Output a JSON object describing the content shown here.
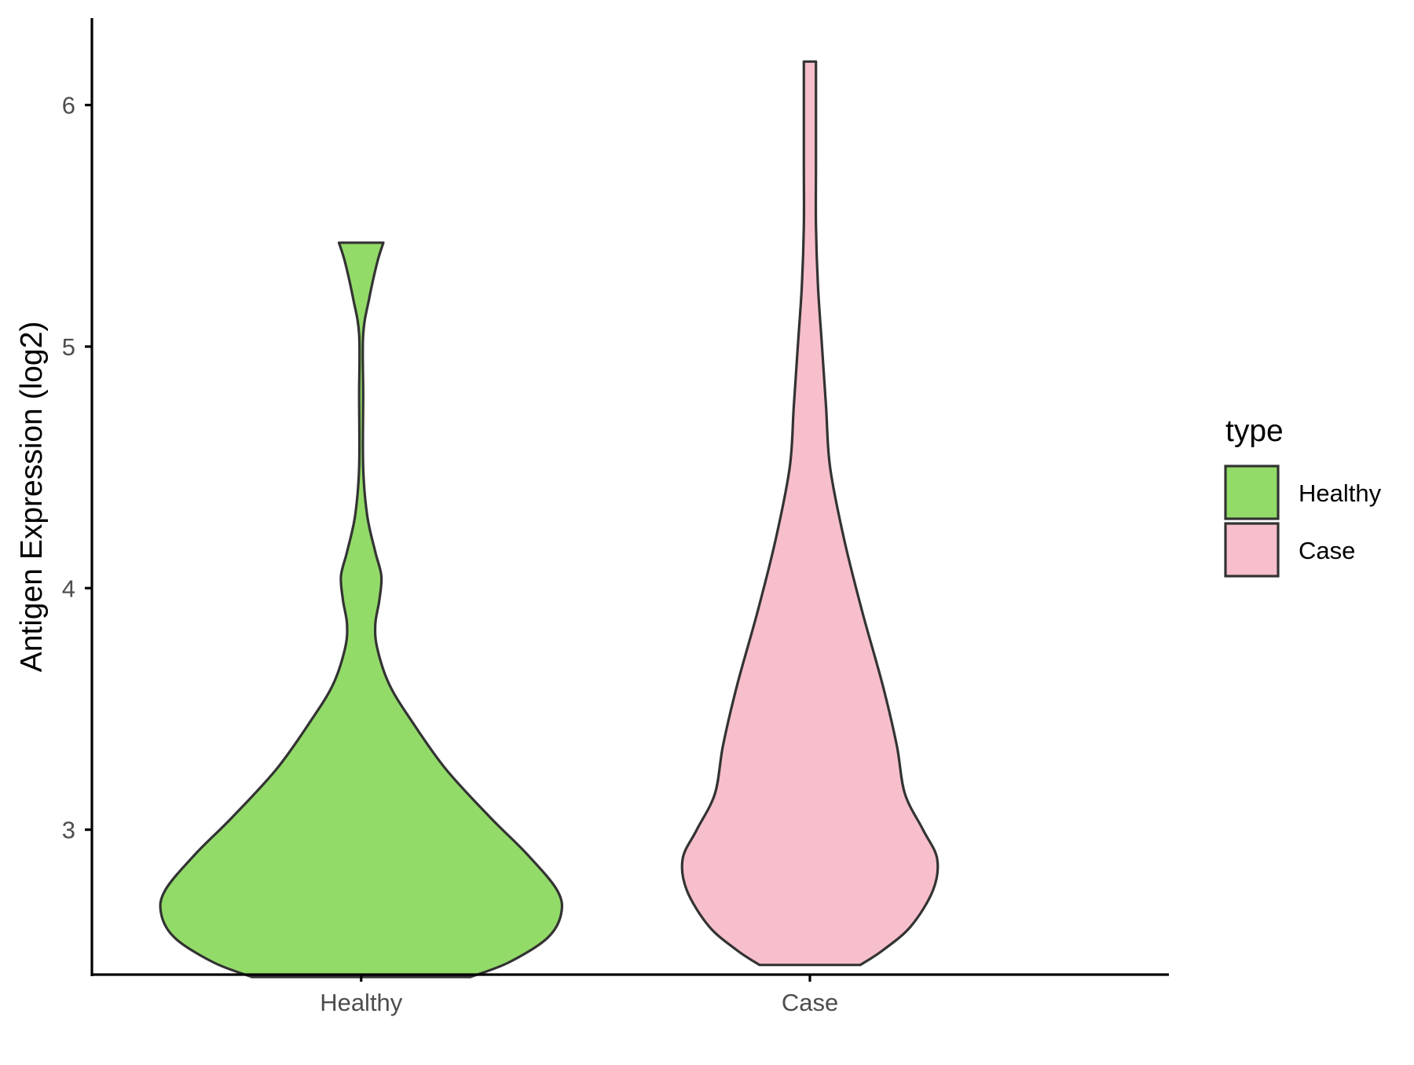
{
  "chart_data": {
    "type": "violin",
    "xlabel": "",
    "ylabel": "Antigen Expression (log2)",
    "ylim": [
      2.4,
      6.36
    ],
    "yticks": [
      3,
      4,
      5,
      6
    ],
    "categories": [
      "Healthy",
      "Case"
    ],
    "legend": {
      "title": "type",
      "placement": "right",
      "entries": [
        {
          "label": "Healthy",
          "color": "#93db69"
        },
        {
          "label": "Case",
          "color": "#f7bfcb"
        }
      ]
    },
    "series": [
      {
        "category": "Healthy",
        "color": "#93db69",
        "min": 2.39,
        "max": 5.43,
        "density_profile": [
          [
            2.39,
            0.54
          ],
          [
            2.45,
            0.73
          ],
          [
            2.55,
            0.92
          ],
          [
            2.65,
            0.99
          ],
          [
            2.75,
            0.97
          ],
          [
            2.9,
            0.82
          ],
          [
            3.05,
            0.64
          ],
          [
            3.25,
            0.42
          ],
          [
            3.45,
            0.25
          ],
          [
            3.6,
            0.14
          ],
          [
            3.75,
            0.08
          ],
          [
            3.85,
            0.07
          ],
          [
            3.95,
            0.09
          ],
          [
            4.05,
            0.1
          ],
          [
            4.15,
            0.07
          ],
          [
            4.3,
            0.03
          ],
          [
            4.5,
            0.01
          ],
          [
            4.8,
            0.01
          ],
          [
            5.05,
            0.01
          ],
          [
            5.2,
            0.04
          ],
          [
            5.35,
            0.08
          ],
          [
            5.43,
            0.11
          ]
        ]
      },
      {
        "category": "Case",
        "color": "#f7bfcb",
        "min": 2.44,
        "max": 6.18,
        "density_profile": [
          [
            2.44,
            0.25
          ],
          [
            2.5,
            0.36
          ],
          [
            2.6,
            0.5
          ],
          [
            2.75,
            0.61
          ],
          [
            2.88,
            0.63
          ],
          [
            3.0,
            0.56
          ],
          [
            3.15,
            0.47
          ],
          [
            3.35,
            0.43
          ],
          [
            3.6,
            0.36
          ],
          [
            3.9,
            0.26
          ],
          [
            4.2,
            0.17
          ],
          [
            4.5,
            0.1
          ],
          [
            4.75,
            0.08
          ],
          [
            5.0,
            0.06
          ],
          [
            5.25,
            0.04
          ],
          [
            5.5,
            0.03
          ],
          [
            5.75,
            0.03
          ],
          [
            6.0,
            0.03
          ],
          [
            6.18,
            0.03
          ]
        ]
      }
    ]
  }
}
